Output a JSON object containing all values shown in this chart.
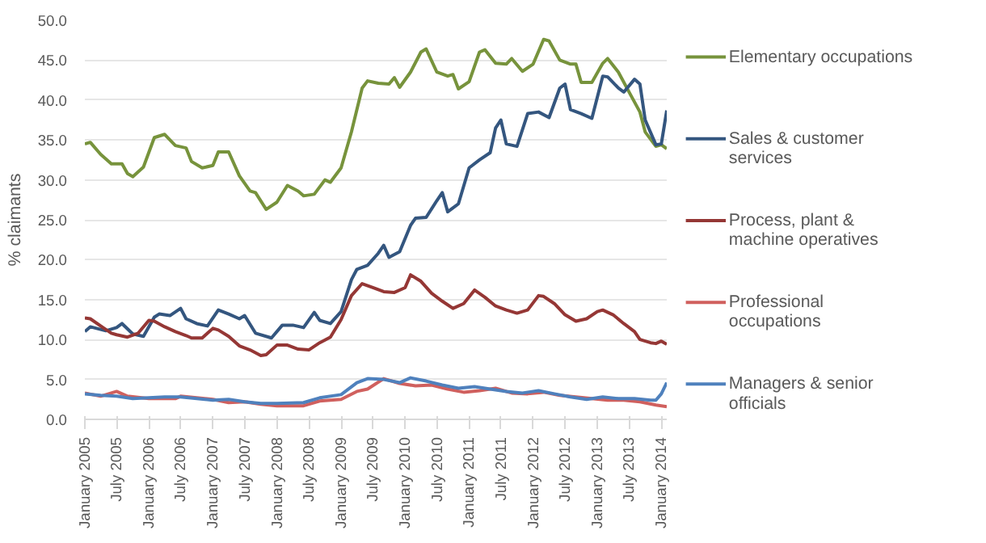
{
  "chart_data": {
    "type": "line",
    "ylabel": "% claimants",
    "xlim": [
      "2005-01",
      "2014-02"
    ],
    "ylim": [
      0,
      50
    ],
    "yticks": [
      {
        "value": 0,
        "label": "0.0"
      },
      {
        "value": 5,
        "label": "5.0"
      },
      {
        "value": 10,
        "label": "10.0"
      },
      {
        "value": 15,
        "label": "15.0"
      },
      {
        "value": 20,
        "label": "20.0"
      },
      {
        "value": 25,
        "label": "25.0"
      },
      {
        "value": 30,
        "label": "30.0"
      },
      {
        "value": 35,
        "label": "35.0"
      },
      {
        "value": 40,
        "label": "40.0"
      },
      {
        "value": 45,
        "label": "45.0"
      },
      {
        "value": 50,
        "label": "50.0"
      }
    ],
    "xticks": [
      {
        "value": "2005-01",
        "label": "January 2005"
      },
      {
        "value": "2005-07",
        "label": "July 2005"
      },
      {
        "value": "2006-01",
        "label": "January 2006"
      },
      {
        "value": "2006-07",
        "label": "July 2006"
      },
      {
        "value": "2007-01",
        "label": "January 2007"
      },
      {
        "value": "2007-07",
        "label": "July 2007"
      },
      {
        "value": "2008-01",
        "label": "January 2008"
      },
      {
        "value": "2008-07",
        "label": "July 2008"
      },
      {
        "value": "2009-01",
        "label": "January 2009"
      },
      {
        "value": "2009-07",
        "label": "July 2009"
      },
      {
        "value": "2010-01",
        "label": "January 2010"
      },
      {
        "value": "2010-07",
        "label": "July 2010"
      },
      {
        "value": "2011-01",
        "label": "January 2011"
      },
      {
        "value": "2011-07",
        "label": "July 2011"
      },
      {
        "value": "2012-01",
        "label": "January 2012"
      },
      {
        "value": "2012-07",
        "label": "July 2012"
      },
      {
        "value": "2013-01",
        "label": "January 2013"
      },
      {
        "value": "2013-07",
        "label": "July 2013"
      },
      {
        "value": "2014-01",
        "label": "January 2014"
      }
    ],
    "grid": "y",
    "legend": "right",
    "marker": "none",
    "line_style": "solid",
    "series": [
      {
        "name": "Elementary occupations",
        "color": "#77933c",
        "x": [
          "2005-01",
          "2005-02",
          "2005-04",
          "2005-06",
          "2005-08",
          "2005-09",
          "2005-10",
          "2005-12",
          "2006-02",
          "2006-04",
          "2006-06",
          "2006-08",
          "2006-09",
          "2006-11",
          "2007-01",
          "2007-02",
          "2007-04",
          "2007-06",
          "2007-08",
          "2007-09",
          "2007-11",
          "2008-01",
          "2008-03",
          "2008-05",
          "2008-06",
          "2008-08",
          "2008-10",
          "2008-11",
          "2009-01",
          "2009-03",
          "2009-05",
          "2009-06",
          "2009-08",
          "2009-10",
          "2009-11",
          "2009-12",
          "2010-02",
          "2010-04",
          "2010-05",
          "2010-07",
          "2010-09",
          "2010-10",
          "2010-11",
          "2011-01",
          "2011-03",
          "2011-04",
          "2011-06",
          "2011-08",
          "2011-09",
          "2011-11",
          "2012-01",
          "2012-03",
          "2012-04",
          "2012-06",
          "2012-08",
          "2012-09",
          "2012-10",
          "2012-12",
          "2013-02",
          "2013-03",
          "2013-05",
          "2013-07",
          "2013-09",
          "2013-10",
          "2013-12",
          "2014-01",
          "2014-02"
        ],
        "values": [
          34.5,
          34.7,
          33.2,
          32.0,
          32.0,
          30.8,
          30.4,
          31.6,
          35.3,
          35.7,
          34.3,
          34.0,
          32.3,
          31.5,
          31.8,
          33.5,
          33.5,
          30.5,
          28.6,
          28.4,
          26.3,
          27.2,
          29.3,
          28.6,
          28.0,
          28.2,
          30.0,
          29.7,
          31.5,
          36.0,
          41.5,
          42.4,
          42.1,
          42.0,
          42.8,
          41.6,
          43.5,
          46.0,
          46.4,
          43.5,
          43.0,
          43.2,
          41.4,
          42.3,
          46.0,
          46.3,
          44.6,
          44.5,
          45.2,
          43.6,
          44.5,
          47.6,
          47.4,
          45.0,
          44.5,
          44.5,
          42.2,
          42.2,
          44.6,
          45.2,
          43.5,
          41.0,
          38.5,
          36.0,
          34.2,
          34.4,
          33.9
        ]
      },
      {
        "name": "Sales & customer services",
        "color": "#34567f",
        "x": [
          "2005-01",
          "2005-02",
          "2005-05",
          "2005-07",
          "2005-08",
          "2005-10",
          "2005-12",
          "2006-02",
          "2006-03",
          "2006-05",
          "2006-07",
          "2006-08",
          "2006-10",
          "2006-12",
          "2007-02",
          "2007-04",
          "2007-06",
          "2007-07",
          "2007-09",
          "2007-12",
          "2008-02",
          "2008-04",
          "2008-06",
          "2008-08",
          "2008-09",
          "2008-11",
          "2009-01",
          "2009-03",
          "2009-04",
          "2009-06",
          "2009-08",
          "2009-09",
          "2009-10",
          "2009-12",
          "2010-02",
          "2010-03",
          "2010-05",
          "2010-07",
          "2010-08",
          "2010-09",
          "2010-11",
          "2011-01",
          "2011-03",
          "2011-05",
          "2011-06",
          "2011-07",
          "2011-08",
          "2011-10",
          "2011-12",
          "2012-02",
          "2012-04",
          "2012-06",
          "2012-07",
          "2012-08",
          "2012-10",
          "2012-12",
          "2013-02",
          "2013-03",
          "2013-05",
          "2013-06",
          "2013-08",
          "2013-09",
          "2013-10",
          "2013-12",
          "2014-01",
          "2014-02"
        ],
        "values": [
          11.0,
          11.6,
          11.1,
          11.5,
          12.0,
          10.7,
          10.4,
          12.8,
          13.2,
          13.0,
          13.9,
          12.6,
          12.0,
          11.7,
          13.7,
          13.2,
          12.6,
          13.0,
          10.8,
          10.2,
          11.8,
          11.8,
          11.5,
          13.4,
          12.4,
          12.0,
          13.5,
          17.5,
          18.8,
          19.3,
          20.8,
          21.8,
          20.3,
          21.0,
          24.3,
          25.2,
          25.3,
          27.4,
          28.4,
          26.0,
          27.0,
          31.5,
          32.5,
          33.4,
          36.5,
          37.5,
          34.5,
          34.2,
          38.3,
          38.5,
          37.8,
          41.5,
          42.0,
          38.8,
          38.3,
          37.7,
          43.0,
          42.9,
          41.5,
          41.0,
          42.6,
          42.0,
          37.5,
          34.4,
          34.5,
          38.7
        ]
      },
      {
        "name": "Process, plant & machine operatives",
        "color": "#953735",
        "x": [
          "2005-01",
          "2005-02",
          "2005-04",
          "2005-06",
          "2005-07",
          "2005-09",
          "2005-11",
          "2006-01",
          "2006-02",
          "2006-04",
          "2006-06",
          "2006-08",
          "2006-09",
          "2006-11",
          "2007-01",
          "2007-02",
          "2007-04",
          "2007-06",
          "2007-08",
          "2007-10",
          "2007-11",
          "2008-01",
          "2008-03",
          "2008-05",
          "2008-07",
          "2008-09",
          "2008-11",
          "2009-01",
          "2009-03",
          "2009-05",
          "2009-07",
          "2009-09",
          "2009-11",
          "2010-01",
          "2010-02",
          "2010-04",
          "2010-06",
          "2010-08",
          "2010-10",
          "2010-12",
          "2011-02",
          "2011-04",
          "2011-06",
          "2011-08",
          "2011-10",
          "2011-12",
          "2012-02",
          "2012-03",
          "2012-05",
          "2012-07",
          "2012-09",
          "2012-11",
          "2013-01",
          "2013-02",
          "2013-04",
          "2013-06",
          "2013-08",
          "2013-09",
          "2013-11",
          "2013-12",
          "2014-01",
          "2014-02"
        ],
        "values": [
          12.7,
          12.6,
          11.7,
          10.8,
          10.6,
          10.3,
          10.8,
          12.4,
          12.3,
          11.6,
          11.0,
          10.5,
          10.2,
          10.2,
          11.4,
          11.2,
          10.4,
          9.2,
          8.7,
          8.0,
          8.1,
          9.3,
          9.3,
          8.8,
          8.7,
          9.6,
          10.3,
          12.5,
          15.5,
          17.0,
          16.5,
          16.0,
          15.9,
          16.5,
          18.1,
          17.3,
          15.8,
          14.8,
          13.9,
          14.5,
          16.2,
          15.3,
          14.2,
          13.7,
          13.3,
          13.7,
          15.5,
          15.4,
          14.5,
          13.1,
          12.3,
          12.6,
          13.5,
          13.7,
          13.1,
          12.0,
          11.0,
          10.0,
          9.6,
          9.5,
          9.8,
          9.4
        ]
      },
      {
        "name": "Professional occupations",
        "color": "#d0605e",
        "x": [
          "2005-01",
          "2005-04",
          "2005-07",
          "2005-09",
          "2006-01",
          "2006-06",
          "2006-07",
          "2007-01",
          "2007-04",
          "2007-07",
          "2007-10",
          "2008-01",
          "2008-06",
          "2008-09",
          "2009-01",
          "2009-04",
          "2009-06",
          "2009-09",
          "2009-12",
          "2010-03",
          "2010-06",
          "2010-09",
          "2010-12",
          "2011-03",
          "2011-06",
          "2011-09",
          "2011-12",
          "2012-03",
          "2012-06",
          "2012-09",
          "2012-12",
          "2013-03",
          "2013-06",
          "2013-09",
          "2013-12",
          "2014-02"
        ],
        "values": [
          3.3,
          2.9,
          3.5,
          2.9,
          2.6,
          2.6,
          2.9,
          2.5,
          2.1,
          2.2,
          1.9,
          1.7,
          1.7,
          2.3,
          2.5,
          3.5,
          3.8,
          5.1,
          4.5,
          4.2,
          4.3,
          3.8,
          3.4,
          3.6,
          3.9,
          3.3,
          3.2,
          3.4,
          3.0,
          2.8,
          2.6,
          2.4,
          2.4,
          2.2,
          1.8,
          1.6
        ]
      },
      {
        "name": "Managers & senior officials",
        "color": "#4f81bd",
        "x": [
          "2005-01",
          "2005-04",
          "2005-07",
          "2005-10",
          "2006-01",
          "2006-04",
          "2006-07",
          "2007-01",
          "2007-04",
          "2007-07",
          "2007-10",
          "2008-01",
          "2008-06",
          "2008-09",
          "2009-01",
          "2009-04",
          "2009-06",
          "2009-09",
          "2009-12",
          "2010-02",
          "2010-05",
          "2010-08",
          "2010-11",
          "2011-02",
          "2011-05",
          "2011-08",
          "2011-11",
          "2012-02",
          "2012-05",
          "2012-08",
          "2012-11",
          "2013-02",
          "2013-05",
          "2013-08",
          "2013-11",
          "2013-12",
          "2014-01",
          "2014-02"
        ],
        "values": [
          3.2,
          3.0,
          2.9,
          2.6,
          2.7,
          2.8,
          2.8,
          2.4,
          2.5,
          2.2,
          2.0,
          2.0,
          2.1,
          2.7,
          3.1,
          4.6,
          5.1,
          5.0,
          4.6,
          5.2,
          4.8,
          4.3,
          3.9,
          4.1,
          3.8,
          3.5,
          3.3,
          3.6,
          3.2,
          2.8,
          2.5,
          2.8,
          2.6,
          2.6,
          2.4,
          2.4,
          3.2,
          4.6
        ]
      }
    ]
  }
}
